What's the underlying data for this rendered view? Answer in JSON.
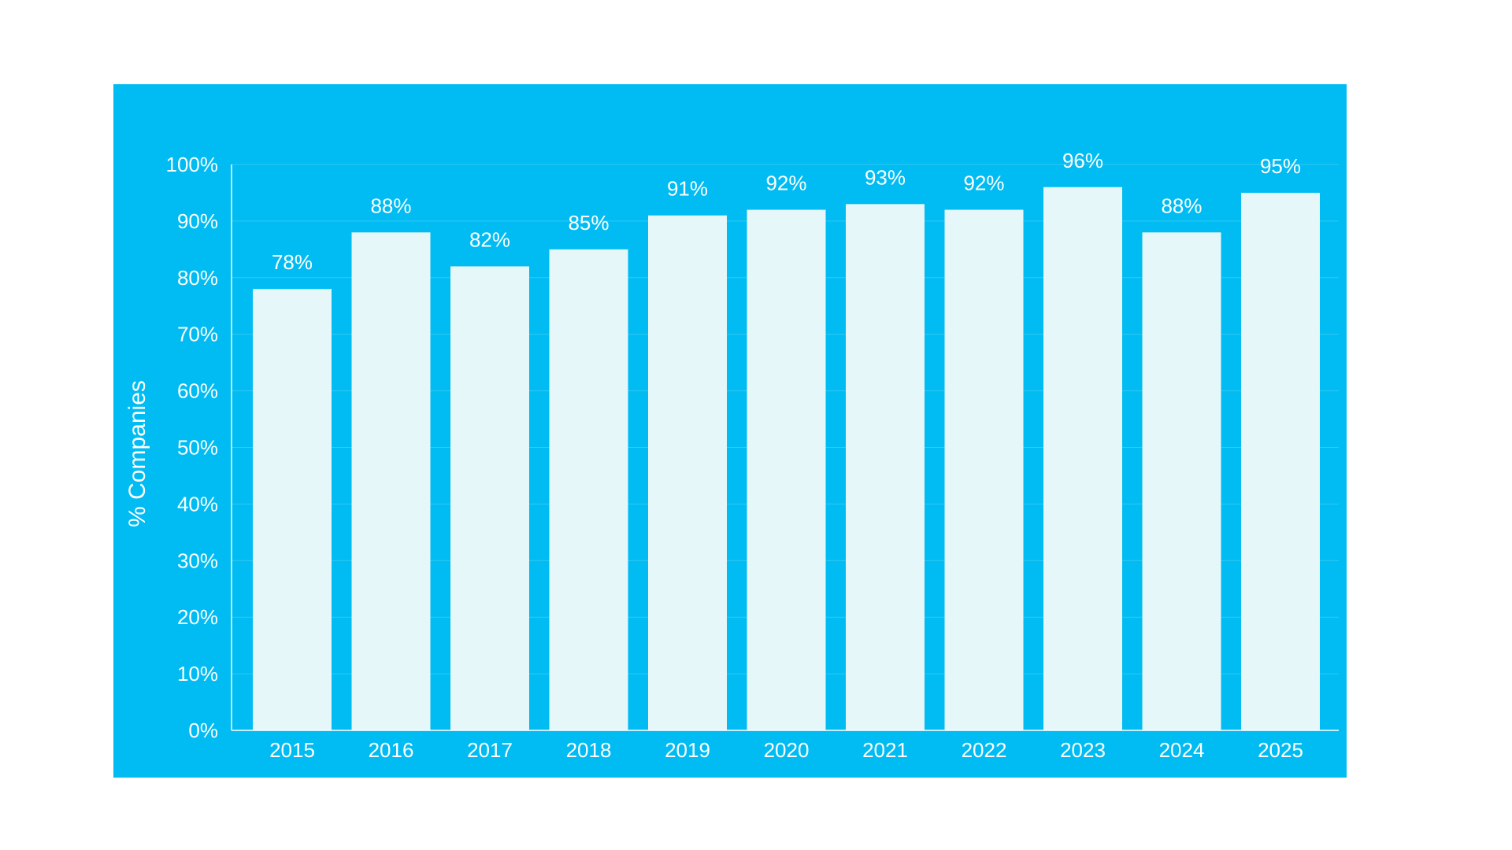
{
  "colors": {
    "background": "#00BCF2",
    "bar": "#E6F7F9",
    "text": "#FFFFFF",
    "gridline": "#33C8F3",
    "axis": "#FFFFFF"
  },
  "chart_data": {
    "type": "bar",
    "categories": [
      "2015",
      "2016",
      "2017",
      "2018",
      "2019",
      "2020",
      "2021",
      "2022",
      "2023",
      "2024",
      "2025"
    ],
    "values": [
      78,
      88,
      82,
      85,
      91,
      92,
      93,
      92,
      96,
      88,
      95
    ],
    "data_labels": [
      "78%",
      "88%",
      "82%",
      "85%",
      "91%",
      "92%",
      "93%",
      "92%",
      "96%",
      "88%",
      "95%"
    ],
    "ylabel": "% Companies",
    "ylim": [
      0,
      100
    ],
    "yticks": [
      "0%",
      "10%",
      "20%",
      "30%",
      "40%",
      "50%",
      "60%",
      "70%",
      "80%",
      "90%",
      "100%"
    ],
    "grid": true,
    "legend": "none"
  }
}
